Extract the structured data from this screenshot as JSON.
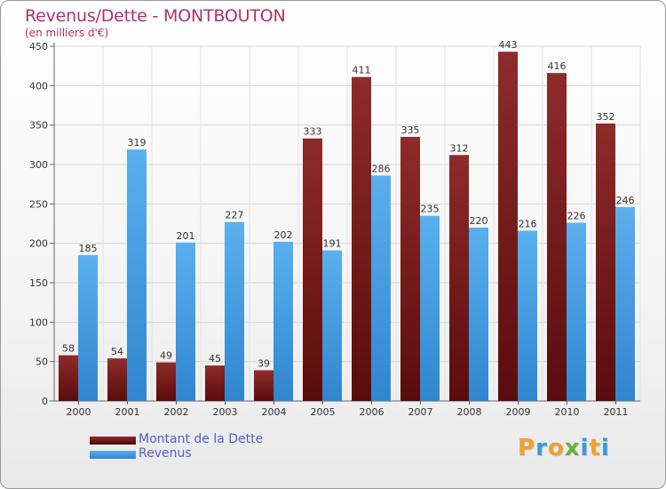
{
  "header": {
    "title": "Revenus/Dette - MONTBOUTON",
    "subtitle": "(en milliers d'€)"
  },
  "legend": [
    {
      "label": "Montant de la Dette",
      "color": "#7a1a1a"
    },
    {
      "label": "Revenus",
      "color": "#4aa3e6"
    }
  ],
  "logo": {
    "text": "Proxiti",
    "letters": [
      "P",
      "r",
      "o",
      "x",
      "i",
      "t",
      "i"
    ],
    "colors": [
      "#f0a030",
      "#3a9ad8",
      "#f0a030",
      "#6ab040",
      "#3a9ad8",
      "#f0a030",
      "#3a9ad8"
    ]
  },
  "chart_data": {
    "type": "bar",
    "title": "Revenus/Dette - MONTBOUTON",
    "subtitle": "(en milliers d'€)",
    "categories": [
      "2000",
      "2001",
      "2002",
      "2003",
      "2004",
      "2005",
      "2006",
      "2007",
      "2008",
      "2009",
      "2010",
      "2011"
    ],
    "series": [
      {
        "name": "Montant de la Dette",
        "color": "#7a1a1a",
        "values": [
          58,
          54,
          49,
          45,
          39,
          333,
          411,
          335,
          312,
          443,
          416,
          352
        ]
      },
      {
        "name": "Revenus",
        "color": "#4aa3e6",
        "values": [
          185,
          319,
          201,
          227,
          202,
          191,
          286,
          235,
          220,
          216,
          226,
          246
        ]
      }
    ],
    "ylim": [
      0,
      450
    ],
    "yticks": [
      0,
      50,
      100,
      150,
      200,
      250,
      300,
      350,
      400,
      450
    ],
    "grid": true,
    "legend_position": "bottom-left"
  }
}
